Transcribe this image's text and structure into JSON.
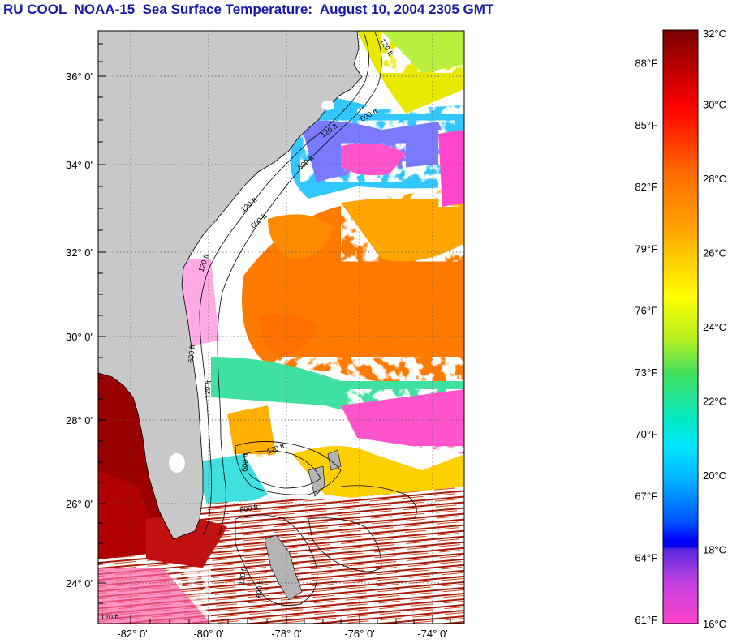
{
  "title": "RU COOL  NOAA-15  Sea Surface Temperature:  August 10, 2004 2305 GMT",
  "map": {
    "lat_ticks": [
      "36° 0'",
      "34° 0'",
      "32° 0'",
      "30° 0'",
      "28° 0'",
      "26° 0'",
      "24° 0'"
    ],
    "lon_ticks": [
      "-82° 0'",
      "-80° 0'",
      "-78° 0'",
      "-76° 0'",
      "-74° 0'"
    ],
    "contour_labels": [
      "120 ft",
      "600 ft",
      "120 ft",
      "600 ft",
      "120 ft",
      "600 ft",
      "120 ft",
      "600 ft",
      "120 ft",
      "600 ft",
      "120 ft",
      "600 ft",
      "120 ft",
      "600 ft",
      "120 ft"
    ],
    "colors": {
      "land": "#c8c8c8",
      "cloud": "#ffffff",
      "coast": "#000000",
      "grid": "#555555"
    }
  },
  "colorbar": {
    "celsius_labels": [
      "32°C",
      "30°C",
      "28°C",
      "26°C",
      "24°C",
      "22°C",
      "20°C",
      "18°C",
      "16°C"
    ],
    "fahrenheit_labels": [
      "88°F",
      "85°F",
      "82°F",
      "79°F",
      "76°F",
      "73°F",
      "70°F",
      "67°F",
      "64°F",
      "61°F"
    ],
    "celsius_range": [
      16,
      32
    ]
  }
}
